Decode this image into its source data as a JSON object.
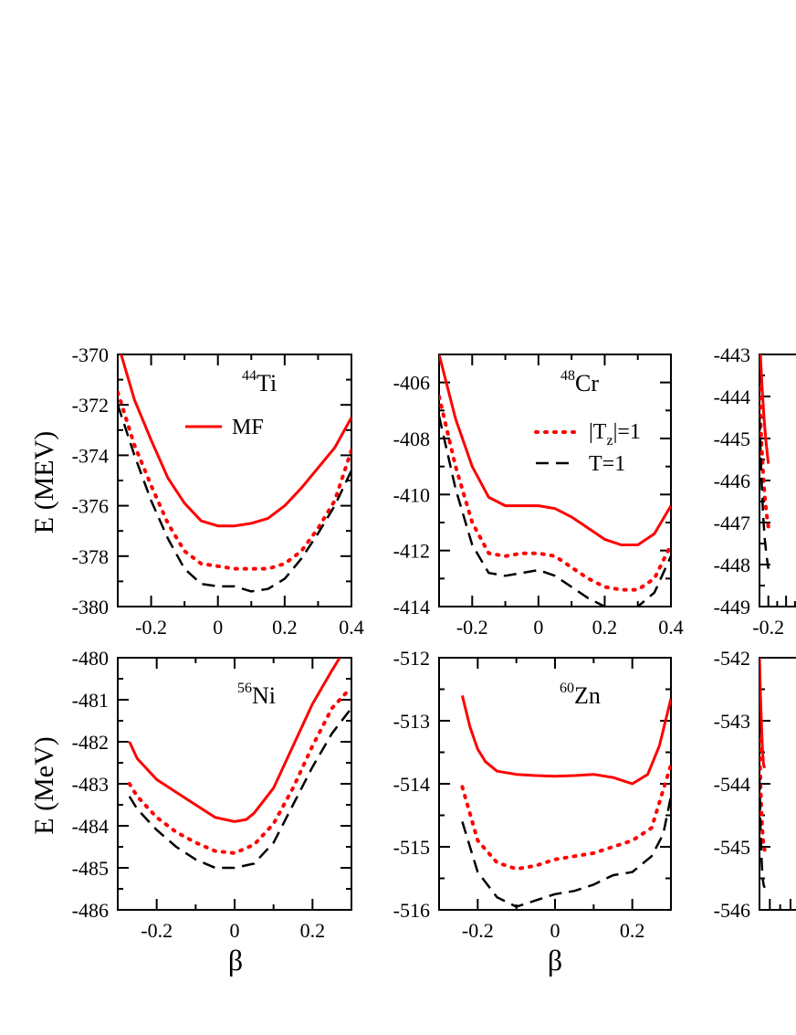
{
  "colors": {
    "mf": "#ff0000",
    "tz": "#ff0000",
    "t1": "#000000",
    "axis": "#000000"
  },
  "legend": {
    "mf_label": "MF",
    "tz_label_base": "|T",
    "tz_label_sub": "z",
    "tz_label_end": "|=1",
    "t1_label": "T=1"
  },
  "ylabels": {
    "top": "E (MEV)",
    "bottom": "E (MeV)"
  },
  "xlabel": "β",
  "chart_data": [
    {
      "type": "line",
      "nucleus_mass": "44",
      "nucleus_symbol": "Ti",
      "xlim": [
        -0.3,
        0.4
      ],
      "ylim": [
        -380,
        -370
      ],
      "xticks": [
        -0.2,
        0,
        0.2,
        0.4
      ],
      "xtick_labels": [
        "-0.2",
        "0",
        "0.2",
        "0.4"
      ],
      "yticks": [
        -380,
        -378,
        -376,
        -374,
        -372,
        -370
      ],
      "ytick_labels": [
        "-380",
        "-378",
        "-376",
        "-374",
        "-372",
        "-370"
      ],
      "series": [
        {
          "name": "MF",
          "style": "solid",
          "x": [
            -0.29,
            -0.25,
            -0.2,
            -0.15,
            -0.1,
            -0.05,
            0,
            0.05,
            0.1,
            0.15,
            0.2,
            0.25,
            0.3,
            0.35,
            0.4
          ],
          "y": [
            -370,
            -371.8,
            -373.4,
            -374.9,
            -375.9,
            -376.6,
            -376.8,
            -376.8,
            -376.7,
            -376.5,
            -376,
            -375.3,
            -374.5,
            -373.7,
            -372.5
          ]
        },
        {
          "name": "|Tz|=1",
          "style": "dotted",
          "x": [
            -0.3,
            -0.25,
            -0.2,
            -0.15,
            -0.1,
            -0.05,
            0,
            0.05,
            0.1,
            0.15,
            0.2,
            0.25,
            0.3,
            0.35,
            0.4
          ],
          "y": [
            -371.5,
            -373.6,
            -375.2,
            -376.7,
            -377.8,
            -378.3,
            -378.4,
            -378.5,
            -378.5,
            -378.5,
            -378.3,
            -377.8,
            -376.9,
            -375.8,
            -373.8
          ]
        },
        {
          "name": "T=1",
          "style": "dashed",
          "x": [
            -0.3,
            -0.25,
            -0.2,
            -0.15,
            -0.1,
            -0.05,
            0,
            0.05,
            0.1,
            0.15,
            0.2,
            0.25,
            0.3,
            0.35,
            0.4
          ],
          "y": [
            -372,
            -374,
            -375.8,
            -377.3,
            -378.5,
            -379.1,
            -379.2,
            -379.2,
            -379.4,
            -379.3,
            -378.9,
            -378.1,
            -377.1,
            -376,
            -374.6
          ]
        }
      ]
    },
    {
      "type": "line",
      "nucleus_mass": "48",
      "nucleus_symbol": "Cr",
      "xlim": [
        -0.3,
        0.4
      ],
      "ylim": [
        -414,
        -405
      ],
      "xticks": [
        -0.2,
        0,
        0.2,
        0.4
      ],
      "xtick_labels": [
        "-0.2",
        "0",
        "0.2",
        "0.4"
      ],
      "yticks": [
        -414,
        -412,
        -410,
        -408,
        -406
      ],
      "ytick_labels": [
        "-414",
        "-412",
        "-410",
        "-408",
        "-406"
      ],
      "series": [
        {
          "name": "MF",
          "style": "solid",
          "x": [
            -0.3,
            -0.25,
            -0.2,
            -0.15,
            -0.1,
            -0.05,
            0,
            0.05,
            0.1,
            0.15,
            0.2,
            0.25,
            0.3,
            0.35,
            0.4
          ],
          "y": [
            -405,
            -407.3,
            -409,
            -410.1,
            -410.4,
            -410.4,
            -410.4,
            -410.5,
            -410.8,
            -411.2,
            -411.6,
            -411.8,
            -411.8,
            -411.4,
            -410.4
          ]
        },
        {
          "name": "|Tz|=1",
          "style": "dotted",
          "x": [
            -0.3,
            -0.25,
            -0.2,
            -0.15,
            -0.1,
            -0.05,
            0,
            0.05,
            0.1,
            0.15,
            0.2,
            0.25,
            0.3,
            0.35,
            0.4
          ],
          "y": [
            -406.5,
            -409,
            -411,
            -412.1,
            -412.2,
            -412.1,
            -412.1,
            -412.2,
            -412.6,
            -413,
            -413.3,
            -413.4,
            -413.4,
            -413,
            -411.8
          ]
        },
        {
          "name": "T=1",
          "style": "dashed",
          "x": [
            -0.3,
            -0.25,
            -0.2,
            -0.15,
            -0.1,
            -0.05,
            0,
            0.05,
            0.1,
            0.15,
            0.2,
            0.25,
            0.3,
            0.35,
            0.4
          ],
          "y": [
            -407.2,
            -409.8,
            -411.8,
            -412.8,
            -412.9,
            -412.8,
            -412.7,
            -412.9,
            -413.3,
            -413.7,
            -414,
            -414.1,
            -414,
            -413.5,
            -412.2
          ]
        }
      ]
    },
    {
      "type": "line",
      "nucleus_mass": "",
      "nucleus_symbol": "",
      "xlim": [
        -0.3,
        0.4
      ],
      "ylim": [
        -449,
        -443
      ],
      "xticks": [
        -0.2
      ],
      "xtick_labels": [
        "-0.2"
      ],
      "yticks": [
        -449,
        -448,
        -447,
        -446,
        -445,
        -444,
        -443
      ],
      "ytick_labels": [
        "-449",
        "-448",
        "-447",
        "-446",
        "-445",
        "-444",
        "-443"
      ],
      "series": [
        {
          "name": "MF",
          "style": "solid",
          "x": [
            -0.29,
            -0.27,
            -0.25,
            -0.23,
            -0.21,
            -0.2
          ],
          "y": [
            -443,
            -443.8,
            -444.5,
            -445,
            -445.4,
            -445.6
          ]
        },
        {
          "name": "|Tz|=1",
          "style": "dotted",
          "x": [
            -0.3,
            -0.28,
            -0.26,
            -0.24,
            -0.22,
            -0.2
          ],
          "y": [
            -443.8,
            -445,
            -445.8,
            -446.4,
            -446.8,
            -447.1
          ]
        },
        {
          "name": "T=1",
          "style": "dashed",
          "x": [
            -0.3,
            -0.28,
            -0.26,
            -0.24,
            -0.22,
            -0.2
          ],
          "y": [
            -444.5,
            -445.8,
            -446.8,
            -447.4,
            -447.8,
            -448.1
          ]
        }
      ]
    },
    {
      "type": "line",
      "nucleus_mass": "56",
      "nucleus_symbol": "Ni",
      "xlim": [
        -0.3,
        0.3
      ],
      "ylim": [
        -486,
        -480
      ],
      "xticks": [
        -0.2,
        0,
        0.2
      ],
      "xtick_labels": [
        "-0.2",
        "0",
        "0.2"
      ],
      "yticks": [
        -486,
        -485,
        -484,
        -483,
        -482,
        -481,
        -480
      ],
      "ytick_labels": [
        "-486",
        "-485",
        "-484",
        "-483",
        "-482",
        "-481",
        "-480"
      ],
      "series": [
        {
          "name": "MF",
          "style": "solid",
          "x": [
            -0.27,
            -0.25,
            -0.2,
            -0.15,
            -0.1,
            -0.05,
            0,
            0.03,
            0.05,
            0.1,
            0.15,
            0.2,
            0.25,
            0.27
          ],
          "y": [
            -482,
            -482.4,
            -482.9,
            -483.2,
            -483.5,
            -483.8,
            -483.9,
            -483.85,
            -483.7,
            -483.1,
            -482.1,
            -481.1,
            -480.3,
            -480
          ]
        },
        {
          "name": "|Tz|=1",
          "style": "dotted",
          "x": [
            -0.27,
            -0.25,
            -0.2,
            -0.15,
            -0.1,
            -0.05,
            0,
            0.05,
            0.1,
            0.15,
            0.2,
            0.25,
            0.29
          ],
          "y": [
            -483,
            -483.3,
            -483.8,
            -484.15,
            -484.4,
            -484.6,
            -484.65,
            -484.45,
            -483.95,
            -483.1,
            -482.1,
            -481.2,
            -480.8
          ]
        },
        {
          "name": "T=1",
          "style": "dashed",
          "x": [
            -0.27,
            -0.25,
            -0.2,
            -0.15,
            -0.1,
            -0.05,
            0,
            0.05,
            0.1,
            0.15,
            0.2,
            0.25,
            0.3
          ],
          "y": [
            -483.3,
            -483.6,
            -484.1,
            -484.5,
            -484.8,
            -485,
            -485,
            -484.9,
            -484.4,
            -483.5,
            -482.6,
            -481.8,
            -481.2
          ]
        }
      ]
    },
    {
      "type": "line",
      "nucleus_mass": "60",
      "nucleus_symbol": "Zn",
      "xlim": [
        -0.3,
        0.3
      ],
      "ylim": [
        -516,
        -512
      ],
      "xticks": [
        -0.2,
        0,
        0.2
      ],
      "xtick_labels": [
        "-0.2",
        "0",
        "0.2"
      ],
      "yticks": [
        -516,
        -515,
        -514,
        -513,
        -512
      ],
      "ytick_labels": [
        "-516",
        "-515",
        "-514",
        "-513",
        "-512"
      ],
      "series": [
        {
          "name": "MF",
          "style": "solid",
          "x": [
            -0.24,
            -0.22,
            -0.2,
            -0.18,
            -0.15,
            -0.1,
            -0.05,
            0,
            0.05,
            0.1,
            0.15,
            0.2,
            0.24,
            0.27,
            0.3
          ],
          "y": [
            -512.6,
            -513.1,
            -513.45,
            -513.65,
            -513.8,
            -513.85,
            -513.87,
            -513.88,
            -513.87,
            -513.85,
            -513.9,
            -514,
            -513.85,
            -513.4,
            -512.65
          ]
        },
        {
          "name": "|Tz|=1",
          "style": "dotted",
          "x": [
            -0.24,
            -0.2,
            -0.15,
            -0.1,
            -0.05,
            0,
            0.05,
            0.1,
            0.15,
            0.2,
            0.25,
            0.3
          ],
          "y": [
            -514.05,
            -514.9,
            -515.25,
            -515.35,
            -515.3,
            -515.2,
            -515.15,
            -515.1,
            -515.0,
            -514.9,
            -514.7,
            -513.7
          ]
        },
        {
          "name": "T=1",
          "style": "dashed",
          "x": [
            -0.24,
            -0.2,
            -0.15,
            -0.1,
            -0.05,
            0,
            0.05,
            0.1,
            0.15,
            0.2,
            0.25,
            0.28,
            0.3
          ],
          "y": [
            -514.6,
            -515.4,
            -515.8,
            -515.95,
            -515.85,
            -515.75,
            -515.7,
            -515.6,
            -515.45,
            -515.4,
            -515.15,
            -514.8,
            -514.2
          ]
        }
      ]
    },
    {
      "type": "line",
      "nucleus_mass": "",
      "nucleus_symbol": "",
      "xlim": [
        -0.3,
        0.3
      ],
      "ylim": [
        -546,
        -542
      ],
      "xticks": [],
      "xtick_labels": [],
      "yticks": [
        -546,
        -545,
        -544,
        -543,
        -542
      ],
      "ytick_labels": [
        "-546",
        "-545",
        "-544",
        "-543",
        "-542"
      ],
      "series": [
        {
          "name": "MF",
          "style": "solid",
          "x": [
            -0.3,
            -0.29,
            -0.28,
            -0.27,
            -0.26,
            -0.25
          ],
          "y": [
            -542,
            -542.6,
            -543.1,
            -543.5,
            -543.7,
            -543.75
          ]
        },
        {
          "name": "|Tz|=1",
          "style": "dotted",
          "x": [
            -0.3,
            -0.29,
            -0.28,
            -0.27,
            -0.26,
            -0.25
          ],
          "y": [
            -543.3,
            -544,
            -544.5,
            -544.8,
            -545,
            -545.05
          ]
        },
        {
          "name": "T=1",
          "style": "dashed",
          "x": [
            -0.3,
            -0.29,
            -0.28,
            -0.27,
            -0.26,
            -0.25
          ],
          "y": [
            -543.9,
            -544.7,
            -545.2,
            -545.5,
            -545.6,
            -545.65
          ]
        }
      ]
    }
  ]
}
